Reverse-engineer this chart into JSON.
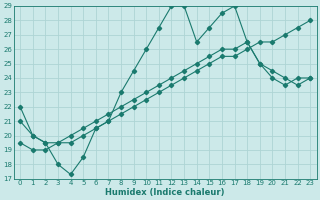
{
  "xlabel": "Humidex (Indice chaleur)",
  "bg_color": "#cce9e9",
  "line_color": "#1a7a6e",
  "grid_color": "#aed4d4",
  "xlim": [
    -0.5,
    23.5
  ],
  "ylim": [
    17,
    29
  ],
  "xticks": [
    0,
    1,
    2,
    3,
    4,
    5,
    6,
    7,
    8,
    9,
    10,
    11,
    12,
    13,
    14,
    15,
    16,
    17,
    18,
    19,
    20,
    21,
    22,
    23
  ],
  "yticks": [
    17,
    18,
    19,
    20,
    21,
    22,
    23,
    24,
    25,
    26,
    27,
    28,
    29
  ],
  "series1_x": [
    0,
    1,
    2,
    3,
    4,
    5,
    6,
    7,
    8,
    9,
    10,
    11,
    12,
    13,
    14,
    15,
    16,
    17,
    18,
    19,
    20,
    21,
    22,
    23
  ],
  "series1_y": [
    22,
    20,
    19.5,
    18,
    17.3,
    18.5,
    20.5,
    21,
    23,
    24.5,
    26,
    27.5,
    29,
    29,
    26.5,
    27.5,
    28.5,
    29,
    26.5,
    25,
    24,
    23.5,
    24,
    24
  ],
  "series2_x": [
    0,
    1,
    2,
    3,
    4,
    5,
    6,
    7,
    8,
    9,
    10,
    11,
    12,
    13,
    14,
    15,
    16,
    17,
    18,
    19,
    20,
    21,
    22,
    23
  ],
  "series2_y": [
    21,
    20,
    19.5,
    19.5,
    20,
    20.5,
    21,
    21.5,
    22,
    22.5,
    23,
    23.5,
    24,
    24.5,
    25,
    25.5,
    26,
    26,
    26.5,
    25,
    24.5,
    24,
    23.5,
    24
  ],
  "series3_x": [
    0,
    1,
    2,
    3,
    4,
    5,
    6,
    7,
    8,
    9,
    10,
    11,
    12,
    13,
    14,
    15,
    16,
    17,
    18,
    19,
    20,
    21,
    22,
    23
  ],
  "series3_y": [
    19.5,
    19,
    19,
    19.5,
    19.5,
    20,
    20.5,
    21,
    21.5,
    22,
    22.5,
    23,
    23.5,
    24,
    24.5,
    25,
    25.5,
    25.5,
    26,
    26.5,
    26.5,
    27,
    27.5,
    28
  ]
}
